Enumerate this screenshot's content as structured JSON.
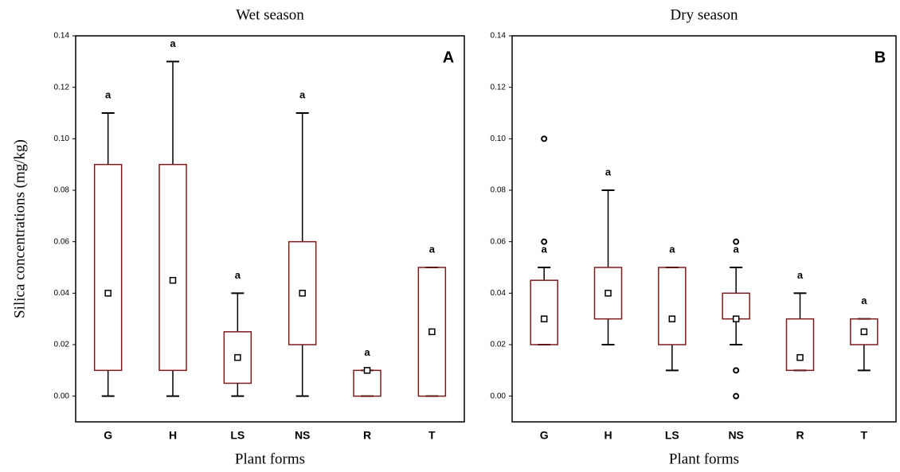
{
  "chart_data": [
    {
      "type": "box",
      "title": "Wet season",
      "panel_label": "A",
      "y_label": "Silica concentrations (mg/kg)",
      "x_label": "Plant forms",
      "categories": [
        "G",
        "H",
        "LS",
        "NS",
        "R",
        "T"
      ],
      "min": [
        0,
        0,
        0,
        0,
        0,
        0
      ],
      "q1": [
        0.01,
        0.01,
        0.005,
        0.02,
        0,
        0
      ],
      "median": [
        0.04,
        0.045,
        0.015,
        0.04,
        0.01,
        0.025
      ],
      "q3": [
        0.09,
        0.09,
        0.025,
        0.06,
        0.01,
        0.05
      ],
      "max": [
        0.11,
        0.13,
        0.04,
        0.11,
        0.01,
        0.05
      ],
      "outliers": [
        [],
        [],
        [],
        [],
        [],
        []
      ],
      "letters": [
        "a",
        "a",
        "a",
        "a",
        "a",
        "a"
      ],
      "color": "#7b1c1c",
      "ylim": [
        -0.01,
        0.14
      ],
      "yticks": [
        {
          "value": 0,
          "label": "0.00"
        },
        0.02,
        0.04,
        0.06,
        0.08,
        {
          "value": 0.1,
          "label": "0.10"
        },
        0.12,
        0.14
      ]
    },
    {
      "type": "box",
      "title": "Dry season",
      "panel_label": "B",
      "x_label": "Plant forms",
      "categories": [
        "G",
        "H",
        "LS",
        "NS",
        "R",
        "T"
      ],
      "min": [
        0.02,
        0.02,
        0.01,
        0.02,
        0.01,
        0.01
      ],
      "q1": [
        0.02,
        0.03,
        0.02,
        0.03,
        0.01,
        0.02
      ],
      "median": [
        0.03,
        0.04,
        0.03,
        0.03,
        0.015,
        0.025
      ],
      "q3": [
        0.045,
        0.05,
        0.05,
        0.04,
        0.03,
        0.03
      ],
      "max": [
        0.05,
        0.08,
        0.05,
        0.05,
        0.04,
        0.03
      ],
      "outliers": [
        [
          0.1,
          0.06
        ],
        [],
        [],
        [
          0.06,
          0.01,
          0
        ],
        [],
        []
      ],
      "letters": [
        "a",
        "a",
        "a",
        "a",
        "a",
        "a"
      ],
      "color": "#7b1c1c",
      "ylim": [
        -0.01,
        0.14
      ],
      "yticks": [
        {
          "value": 0,
          "label": "0.00"
        },
        0.02,
        0.04,
        0.06,
        0.08,
        {
          "value": 0.1,
          "label": "0.10"
        },
        0.12,
        0.14
      ]
    }
  ]
}
